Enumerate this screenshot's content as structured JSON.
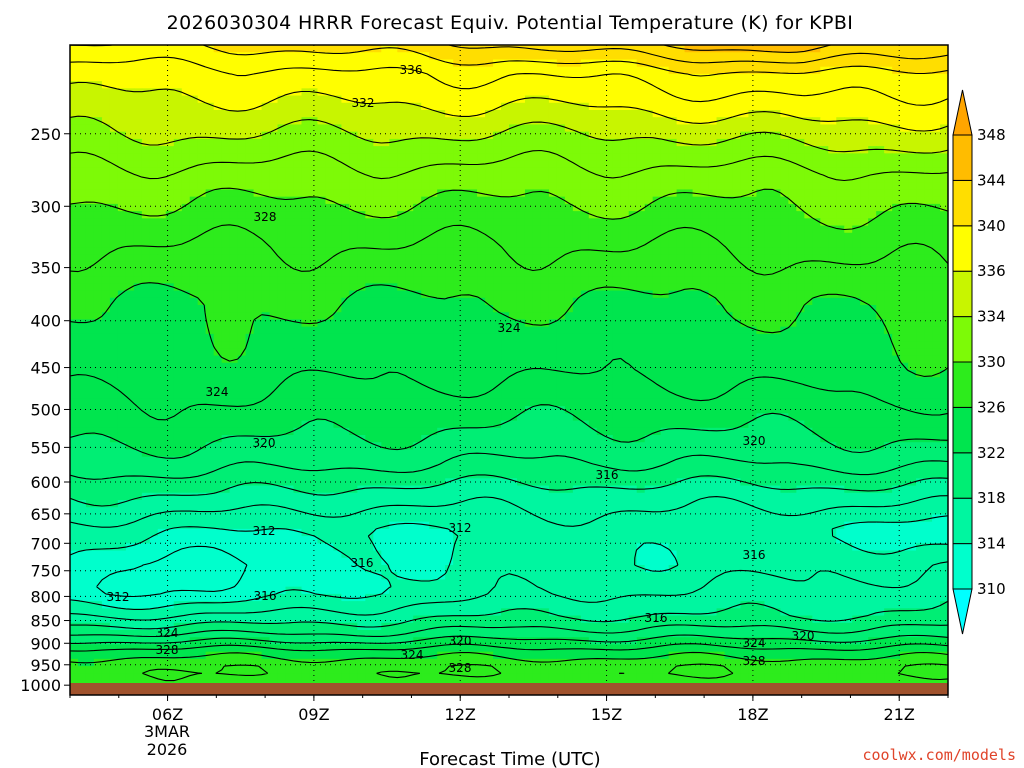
{
  "chart_data": {
    "type": "heatmap",
    "title": "2026030304 HRRR Forecast Equiv. Potential Temperature (K) for KPBI",
    "xlabel": "Forecast Time (UTC)",
    "ylabel": "",
    "x_ticks": [
      "06Z",
      "09Z",
      "12Z",
      "15Z",
      "18Z",
      "21Z"
    ],
    "x_date_line1": "3MAR",
    "x_date_line2": "2026",
    "x_range_hours": [
      4.0,
      22.0
    ],
    "y_ticks": [
      250,
      300,
      350,
      400,
      450,
      500,
      550,
      600,
      650,
      700,
      750,
      800,
      850,
      900,
      950,
      1000
    ],
    "y_range_hpa": [
      200,
      1025
    ],
    "y_scale": "log",
    "colorbar_levels": [
      310,
      314,
      318,
      322,
      326,
      330,
      334,
      336,
      340,
      344,
      348
    ],
    "colorbar_colors": [
      "#00ffff",
      "#00ffcc",
      "#00f6a0",
      "#00ee74",
      "#00e54e",
      "#2dec1c",
      "#7dfa07",
      "#c8f500",
      "#fffe00",
      "#ffde00",
      "#ffbc00",
      "#ffa500"
    ],
    "contour_labels": [
      "336",
      "332",
      "328",
      "324",
      "324",
      "320",
      "320",
      "316",
      "312",
      "312",
      "316",
      "316",
      "312",
      "316",
      "316",
      "320",
      "324",
      "320",
      "324",
      "324",
      "328",
      "328",
      "328"
    ],
    "profile_levels_hpa": [
      200,
      215,
      250,
      280,
      330,
      380,
      450,
      520,
      570,
      620,
      680,
      740,
      790,
      840,
      880,
      920,
      960,
      1000,
      1025
    ],
    "theta_e_profiles": [
      {
        "hour": 4,
        "values": [
          340,
          337,
          334,
          331,
          328,
          326,
          325,
          323,
          321,
          318,
          315,
          313,
          312,
          316,
          320,
          325,
          328,
          327,
          326
        ]
      },
      {
        "hour": 7,
        "values": [
          340,
          337,
          334,
          331,
          328,
          326,
          325,
          323,
          321,
          318,
          314,
          311,
          312,
          316,
          320,
          325,
          328,
          327,
          326
        ]
      },
      {
        "hour": 10,
        "values": [
          341,
          338,
          334,
          331,
          328,
          326,
          324.5,
          322.5,
          320.5,
          317,
          313.5,
          314,
          314,
          317,
          320,
          325,
          328,
          327,
          326
        ]
      },
      {
        "hour": 13,
        "values": [
          342,
          338,
          334,
          331,
          328,
          326,
          324.5,
          322,
          320,
          317,
          314.5,
          315,
          315.5,
          318,
          321,
          325,
          328,
          327,
          326
        ]
      },
      {
        "hour": 16,
        "values": [
          344,
          339,
          334,
          331,
          328,
          326,
          324.5,
          322,
          320,
          317,
          315,
          314.5,
          316,
          318,
          321,
          325,
          328,
          327,
          326
        ]
      },
      {
        "hour": 19,
        "values": [
          345,
          340,
          335,
          331,
          328.5,
          326,
          325,
          322.5,
          320.5,
          317,
          313.5,
          315.5,
          316.5,
          318,
          321,
          325,
          328,
          327,
          326
        ]
      },
      {
        "hour": 22,
        "values": [
          343,
          339,
          335,
          331.5,
          329,
          327,
          325.5,
          323,
          320.5,
          317,
          313,
          316,
          317,
          318.5,
          321,
          325,
          328,
          327,
          326
        ]
      }
    ]
  },
  "credit": "coolwx.com/models"
}
